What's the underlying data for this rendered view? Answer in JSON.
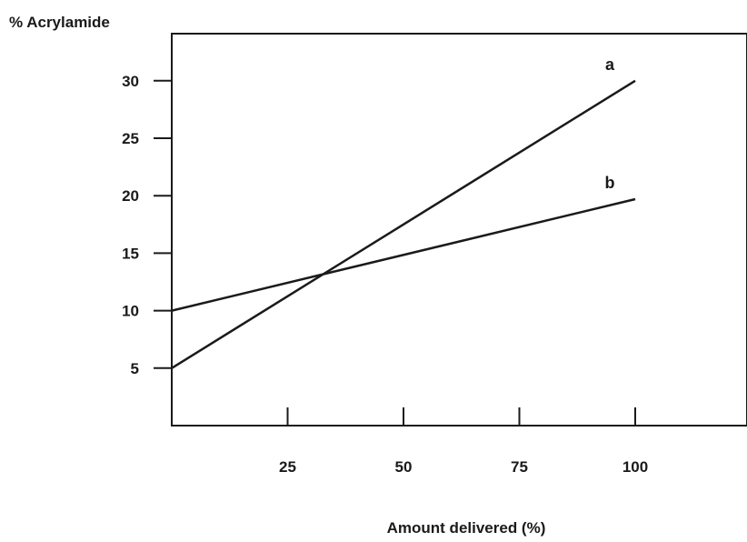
{
  "chart_data": {
    "type": "line",
    "ylabel": "% Acrylamide",
    "xlabel": "Amount delivered (%)",
    "xlim": [
      0,
      125
    ],
    "ylim": [
      0,
      35
    ],
    "xticks": [
      25,
      50,
      75,
      100
    ],
    "yticks": [
      5,
      10,
      15,
      20,
      25,
      30
    ],
    "grid": false,
    "series": [
      {
        "name": "a",
        "x": [
          0,
          100
        ],
        "y": [
          5,
          30
        ]
      },
      {
        "name": "b",
        "x": [
          0,
          100
        ],
        "y": [
          10,
          19.7
        ]
      }
    ]
  }
}
